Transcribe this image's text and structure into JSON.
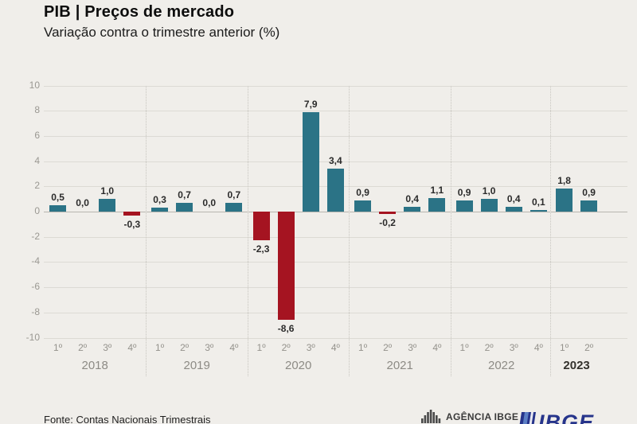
{
  "header": {
    "title": "PIB | Preços de mercado",
    "subtitle": "Variação contra o trimestre anterior (%)"
  },
  "footer": {
    "source": "Fonte: Contas Nacionais Trimestrais",
    "agencia_label": "AGÊNCIA IBGE",
    "ibge_label": "IBGE"
  },
  "chart_data": {
    "type": "bar",
    "title": "PIB | Preços de mercado",
    "subtitle": "Variação contra o trimestre anterior (%)",
    "xlabel": "",
    "ylabel": "",
    "ylim": [
      -10,
      10
    ],
    "ytick_step": 2,
    "grid": true,
    "decimal_separator": ",",
    "quarter_labels": [
      "1º",
      "2º",
      "3º",
      "4º"
    ],
    "positive_color": "#2b7386",
    "negative_color": "#a51421",
    "groups": [
      {
        "year": "2018",
        "values": [
          0.5,
          0.0,
          1.0,
          -0.3
        ],
        "bold_year": false
      },
      {
        "year": "2019",
        "values": [
          0.3,
          0.7,
          0.0,
          0.7
        ],
        "bold_year": false
      },
      {
        "year": "2020",
        "values": [
          -2.3,
          -8.6,
          7.9,
          3.4
        ],
        "bold_year": false
      },
      {
        "year": "2021",
        "values": [
          0.9,
          -0.2,
          0.4,
          1.1
        ],
        "bold_year": false
      },
      {
        "year": "2022",
        "values": [
          0.9,
          1.0,
          0.4,
          0.1
        ],
        "bold_year": false
      },
      {
        "year": "2023",
        "values": [
          1.8,
          0.9
        ],
        "bold_year": true
      }
    ]
  }
}
